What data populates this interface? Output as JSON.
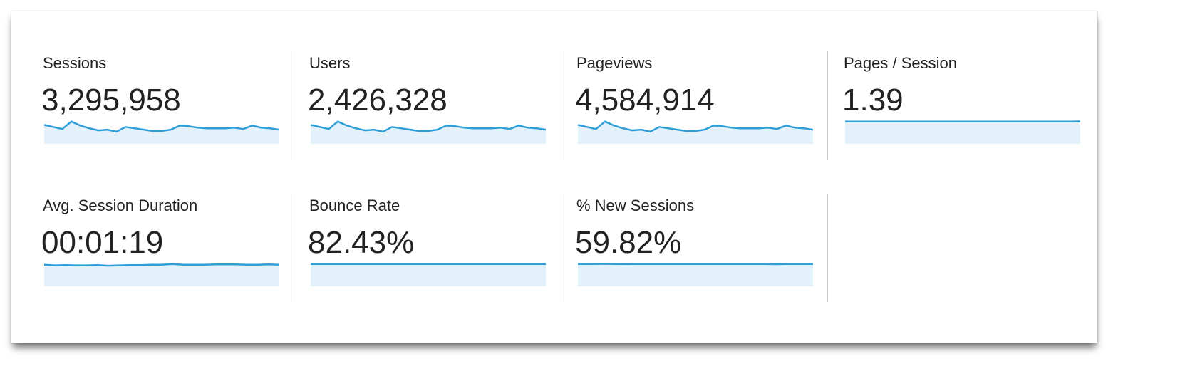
{
  "colors": {
    "line": "#2f9ed6",
    "fill": "#e3f1fa",
    "text": "#222222",
    "divider": "#cccccc"
  },
  "metrics": [
    {
      "label": "Sessions",
      "value": "3,295,958",
      "sparkline": [
        28,
        25,
        22,
        33,
        27,
        23,
        20,
        21,
        18,
        25,
        23,
        21,
        19,
        19,
        21,
        27,
        26,
        24,
        23,
        23,
        23,
        24,
        22,
        27,
        24,
        23,
        21
      ]
    },
    {
      "label": "Users",
      "value": "2,426,328",
      "sparkline": [
        28,
        25,
        22,
        33,
        27,
        23,
        20,
        21,
        18,
        25,
        23,
        21,
        19,
        19,
        21,
        27,
        26,
        24,
        23,
        23,
        23,
        24,
        22,
        27,
        24,
        23,
        21
      ]
    },
    {
      "label": "Pageviews",
      "value": "4,584,914",
      "sparkline": [
        28,
        25,
        22,
        33,
        27,
        23,
        20,
        21,
        18,
        25,
        23,
        21,
        19,
        19,
        21,
        27,
        26,
        24,
        23,
        23,
        23,
        24,
        22,
        27,
        24,
        23,
        21
      ]
    },
    {
      "label": "Pages / Session",
      "value": "1.39",
      "sparkline": [
        33,
        33,
        33,
        33,
        33,
        33,
        33,
        33,
        33,
        33,
        33,
        33,
        33,
        33,
        33,
        33,
        33,
        33,
        33,
        33,
        33,
        33,
        33,
        33,
        33,
        33,
        33.3
      ]
    },
    {
      "label": "Avg. Session Duration",
      "value": "00:01:19",
      "sparkline": [
        32,
        31,
        31.5,
        31,
        31,
        31.5,
        30.5,
        31,
        31.5,
        31.5,
        32,
        32,
        33,
        32,
        32,
        32,
        32.5,
        32.5,
        32.5,
        32,
        32,
        32.5,
        32
      ]
    },
    {
      "label": "Bounce Rate",
      "value": "82.43%",
      "sparkline": [
        33,
        33,
        33,
        33,
        33,
        33,
        33,
        33,
        33,
        33,
        33,
        33,
        33,
        33,
        33,
        33,
        33,
        33,
        33,
        33
      ]
    },
    {
      "label": "% New Sessions",
      "value": "59.82%",
      "sparkline": [
        33,
        33,
        33.3,
        33,
        32.8,
        33,
        33,
        33,
        33,
        33,
        33,
        33,
        33,
        33,
        33,
        33,
        32.7,
        33,
        33,
        33
      ]
    }
  ]
}
